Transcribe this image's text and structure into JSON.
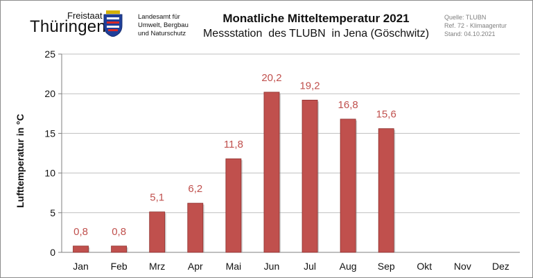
{
  "header": {
    "logo_freistaat": "Freistaat",
    "logo_name": "Thüringen",
    "agency_lines": [
      "Landesamt für",
      "Umwelt, Bergbau",
      "und Naturschutz"
    ],
    "meta_lines": [
      "Quelle: TLUBN",
      "Ref. 72 - Klimaagentur",
      "Stand: 04.10.2021"
    ]
  },
  "chart_data": {
    "type": "bar",
    "title": "Monatliche Mitteltemperatur 2021",
    "subtitle": "Messstation  des TLUBN  in Jena (Göschwitz)",
    "xlabel": "",
    "ylabel": "Lufttemperatur in °C",
    "ylim": [
      0,
      25
    ],
    "yticks": [
      0,
      5,
      10,
      15,
      20,
      25
    ],
    "grid": "horizontal",
    "bar_color": "#c0504d",
    "label_color": "#c0504d",
    "categories": [
      "Jan",
      "Feb",
      "Mrz",
      "Apr",
      "Mai",
      "Jun",
      "Jul",
      "Aug",
      "Sep",
      "Okt",
      "Nov",
      "Dez"
    ],
    "values": [
      0.8,
      0.8,
      5.1,
      6.2,
      11.8,
      20.2,
      19.2,
      16.8,
      15.6,
      null,
      null,
      null
    ],
    "value_labels": [
      "0,8",
      "0,8",
      "5,1",
      "6,2",
      "11,8",
      "20,2",
      "19,2",
      "16,8",
      "15,6",
      "",
      "",
      ""
    ]
  }
}
